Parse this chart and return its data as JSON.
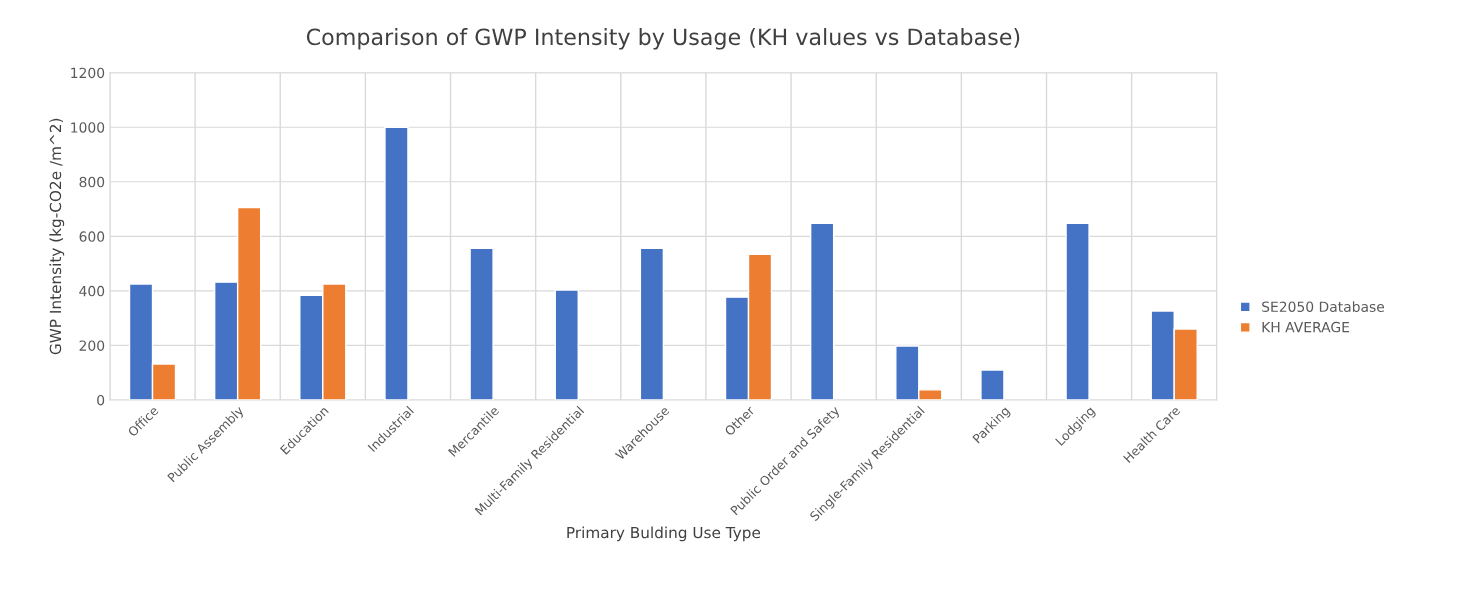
{
  "chart_data": {
    "type": "bar",
    "title": "Comparison of GWP Intensity by Usage (KH values vs Database)",
    "xlabel": "Primary Bulding Use Type",
    "ylabel": "GWP Intensity (kg-CO2e /m^2)",
    "categories": [
      "Office",
      "Public Assembly",
      "Education",
      "Industrial",
      "Mercantile",
      "Multi-Family Residential",
      "Warehouse",
      "Other",
      "Public Order and Safety",
      "Single-Family Residential",
      "Parking",
      "Lodging",
      "Health Care"
    ],
    "series": [
      {
        "name": "SE2050 Database",
        "color": "#4472c4",
        "values": [
          425,
          432,
          384,
          1000,
          556,
          403,
          556,
          377,
          648,
          198,
          110,
          648,
          326
        ]
      },
      {
        "name": "KH AVERAGE",
        "color": "#ed7d31",
        "values": [
          132,
          706,
          425,
          null,
          null,
          null,
          null,
          534,
          null,
          37,
          null,
          null,
          260
        ]
      }
    ],
    "ylim": [
      0,
      1200
    ],
    "yticks": [
      0,
      200,
      400,
      600,
      800,
      1000,
      1200
    ],
    "grid": true,
    "legend": "right"
  }
}
